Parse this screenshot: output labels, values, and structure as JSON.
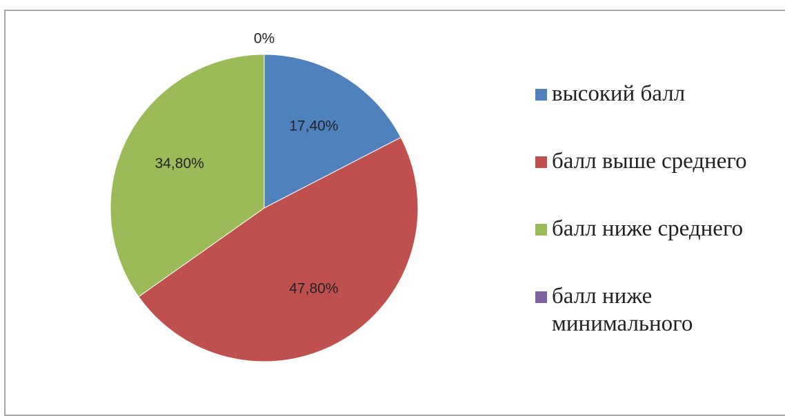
{
  "chart_data": {
    "type": "pie",
    "slices": [
      {
        "label": "высокий балл",
        "value": 17.4,
        "display": "17,40%",
        "color": "#4f81bd"
      },
      {
        "label": "балл выше среднего",
        "value": 47.8,
        "display": "47,80%",
        "color": "#c0504d"
      },
      {
        "label": "балл ниже среднего",
        "value": 34.8,
        "display": "34,80%",
        "color": "#9bbb59"
      },
      {
        "label": "балл ниже минимального",
        "value": 0,
        "display": "0%",
        "color": "#8064a2"
      }
    ],
    "legend_position": "right",
    "start_angle": "top",
    "direction": "clockwise"
  }
}
